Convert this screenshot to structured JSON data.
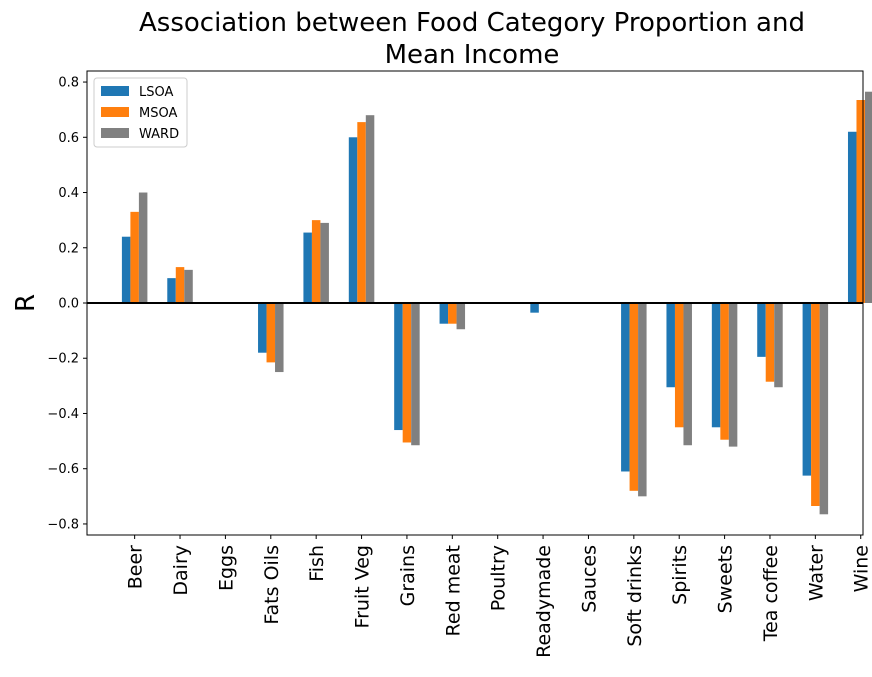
{
  "chart_data": {
    "type": "bar",
    "title_line1": "Association between Food Category Proportion and",
    "title_line2": "Mean Income",
    "title": "Association between Food Category Proportion and Mean Income",
    "xlabel": "",
    "ylabel": "R",
    "ylim": [
      -0.84,
      0.84
    ],
    "yticks": [
      "0.8",
      "0.6",
      "0.4",
      "0.2",
      "0.0",
      "−0.2",
      "−0.4",
      "−0.6",
      "−0.8"
    ],
    "ytick_values": [
      0.8,
      0.6,
      0.4,
      0.2,
      0.0,
      -0.2,
      -0.4,
      -0.6,
      -0.8
    ],
    "legend_position": "upper-left",
    "grid": false,
    "categories": [
      "Beer",
      "Dairy",
      "Eggs",
      "Fats Oils",
      "Fish",
      "Fruit Veg",
      "Grains",
      "Red meat",
      "Poultry",
      "Readymade",
      "Sauces",
      "Soft drinks",
      "Spirits",
      "Sweets",
      "Tea coffee",
      "Water",
      "Wine"
    ],
    "series": [
      {
        "name": "LSOA",
        "color": "#1f77b4",
        "values": [
          0.24,
          0.09,
          0.0,
          -0.18,
          0.255,
          0.6,
          -0.46,
          -0.075,
          0.0,
          -0.035,
          0.0,
          -0.61,
          -0.305,
          -0.45,
          -0.195,
          -0.625,
          0.62
        ]
      },
      {
        "name": "MSOA",
        "color": "#ff7f0e",
        "values": [
          0.33,
          0.13,
          0.0,
          -0.215,
          0.3,
          0.655,
          -0.505,
          -0.075,
          0.0,
          0.0,
          0.0,
          -0.68,
          -0.45,
          -0.495,
          -0.285,
          -0.735,
          0.735
        ]
      },
      {
        "name": "WARD",
        "color": "#808080",
        "values": [
          0.4,
          0.12,
          0.0,
          -0.25,
          0.29,
          0.68,
          -0.515,
          -0.095,
          0.0,
          0.0,
          0.0,
          -0.7,
          -0.515,
          -0.52,
          -0.305,
          -0.765,
          0.765
        ]
      }
    ]
  }
}
